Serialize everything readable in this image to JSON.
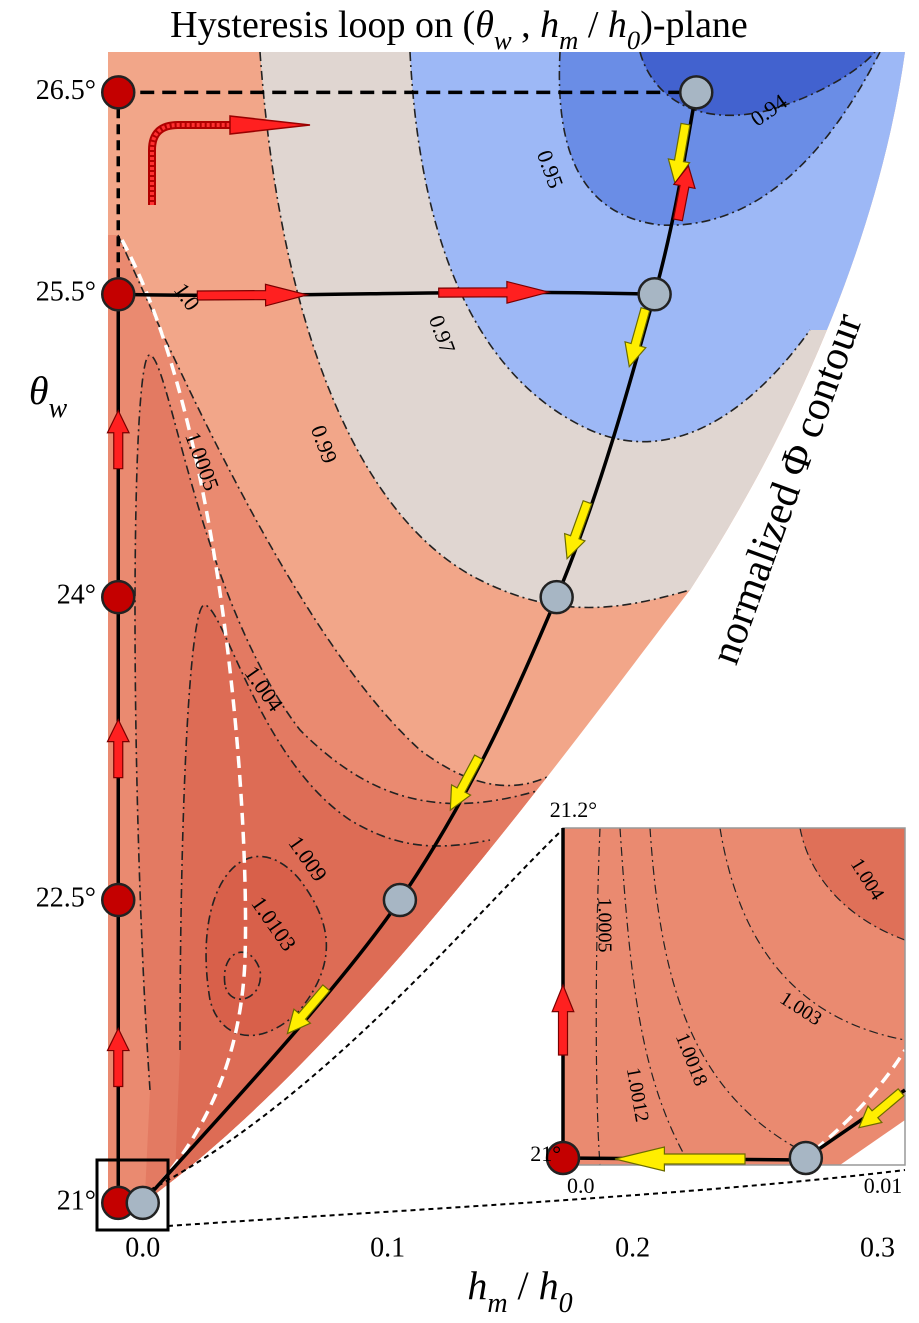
{
  "chart_data": [
    {
      "type": "contour",
      "title": [
        "Hysteresis loop on (",
        "θ",
        "w",
        " , ",
        "h",
        "m",
        " / ",
        "h",
        "0",
        ")-plane"
      ],
      "x_label": [
        "h",
        "m",
        " / ",
        "h",
        "0"
      ],
      "y_label": [
        "θ",
        "w"
      ],
      "annotation": "normalized Φ contour",
      "xlim": [
        -0.015,
        0.31
      ],
      "ylim": [
        20.95,
        26.7
      ],
      "xticks": [
        {
          "value": 0,
          "label": "0.0"
        },
        0.1,
        0.2,
        0.3
      ],
      "yticks": [
        {
          "value": 21,
          "label": "21°"
        },
        {
          "value": 22.5,
          "label": "22.5°"
        },
        {
          "value": 24,
          "label": "24°"
        },
        {
          "value": 25.5,
          "label": "25.5°"
        },
        {
          "value": 26.5,
          "label": "26.5°"
        }
      ],
      "levels": [
        0.94,
        0.95,
        0.97,
        0.99,
        1.0,
        1.0005,
        1.004,
        1.009,
        1.0103
      ],
      "level_labels": [
        "0.94",
        "0.95",
        "0.97",
        "0.99",
        "1.0",
        "1.0005",
        "1.004",
        "1.009",
        "1.0103"
      ],
      "series": [
        {
          "color": "#c40000",
          "x": [
            -0.01,
            -0.01,
            -0.01,
            -0.01,
            -0.01
          ],
          "values": [
            21,
            22.5,
            24,
            25.5,
            26.5
          ]
        },
        {
          "color": "#a7b6c4",
          "x": [
            0.0,
            0.105,
            0.169,
            0.209,
            0.226
          ],
          "values": [
            21,
            22.5,
            24,
            25.5,
            26.5
          ]
        }
      ]
    },
    {
      "type": "contour",
      "xlim": [
        0,
        0.01
      ],
      "ylim": [
        21,
        21.2
      ],
      "xticks": [
        {
          "value": 0,
          "label": "0.0"
        },
        0.01
      ],
      "yticks": [
        {
          "value": 21,
          "label": "21°"
        },
        {
          "value": 21.2,
          "label": "21.2°"
        }
      ],
      "levels": [
        1.0005,
        1.0012,
        1.0018,
        1.003,
        1.004
      ],
      "series": [
        {
          "color": "#c40000",
          "x": [
            0.0
          ],
          "values": [
            21
          ]
        },
        {
          "color": "#a7b6c4",
          "x": [
            0.0071
          ],
          "values": [
            21
          ]
        }
      ]
    }
  ]
}
